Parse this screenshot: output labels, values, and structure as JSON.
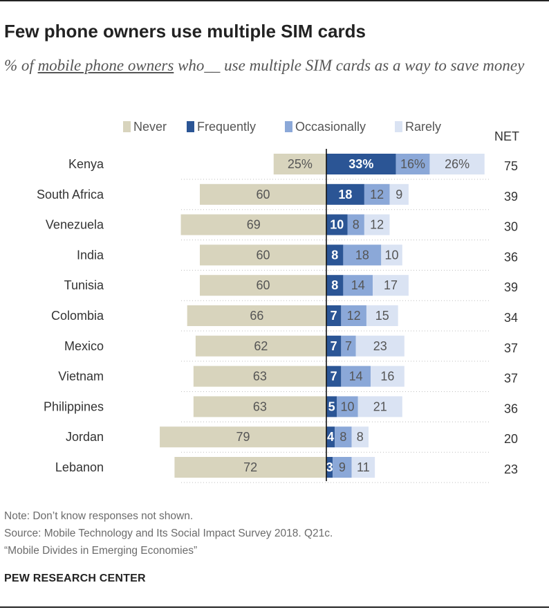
{
  "title": "Few phone owners use multiple SIM cards",
  "subtitle": {
    "prefix": "% of ",
    "underlined": "mobile phone owners",
    "suffix": " who__ use multiple SIM cards as a way to save money"
  },
  "net_label": "NET",
  "colors": {
    "Never": "#d8d4bd",
    "Frequently": "#2b5595",
    "Occasionally": "#8ba8d8",
    "Rarely": "#dae3f3"
  },
  "chart_data": {
    "type": "bar",
    "orientation": "horizontal",
    "stacked": true,
    "diverging": true,
    "categories": [
      "Kenya",
      "South Africa",
      "Venezuela",
      "India",
      "Tunisia",
      "Colombia",
      "Mexico",
      "Vietnam",
      "Philippines",
      "Jordan",
      "Lebanon"
    ],
    "series": [
      {
        "name": "Never",
        "values": [
          25,
          60,
          69,
          60,
          60,
          66,
          62,
          63,
          63,
          79,
          72
        ],
        "labels": [
          "25%",
          "60",
          "69",
          "60",
          "60",
          "66",
          "62",
          "63",
          "63",
          "79",
          "72"
        ]
      },
      {
        "name": "Frequently",
        "values": [
          33,
          18,
          10,
          8,
          8,
          7,
          7,
          7,
          5,
          4,
          3
        ],
        "labels": [
          "33%",
          "18",
          "10",
          "8",
          "8",
          "7",
          "7",
          "7",
          "5",
          "4",
          "3"
        ]
      },
      {
        "name": "Occasionally",
        "values": [
          16,
          12,
          8,
          18,
          14,
          12,
          7,
          14,
          10,
          8,
          9
        ],
        "labels": [
          "16%",
          "12",
          "8",
          "18",
          "14",
          "12",
          "7",
          "14",
          "10",
          "8",
          "9"
        ]
      },
      {
        "name": "Rarely",
        "values": [
          26,
          9,
          12,
          10,
          17,
          15,
          23,
          16,
          21,
          8,
          11
        ],
        "labels": [
          "26%",
          "9",
          "12",
          "10",
          "17",
          "15",
          "23",
          "16",
          "21",
          "8",
          "11"
        ]
      }
    ],
    "net": [
      75,
      39,
      30,
      36,
      39,
      34,
      37,
      37,
      36,
      20,
      23
    ],
    "legend_placement": "top",
    "xlim": [
      -80,
      100
    ]
  },
  "footer": {
    "note": "Note: Don’t know responses not shown.",
    "source": "Source: Mobile Technology and Its Social Impact Survey 2018. Q21c.",
    "report": "“Mobile Divides in Emerging Economies”",
    "brand": "PEW RESEARCH CENTER"
  }
}
